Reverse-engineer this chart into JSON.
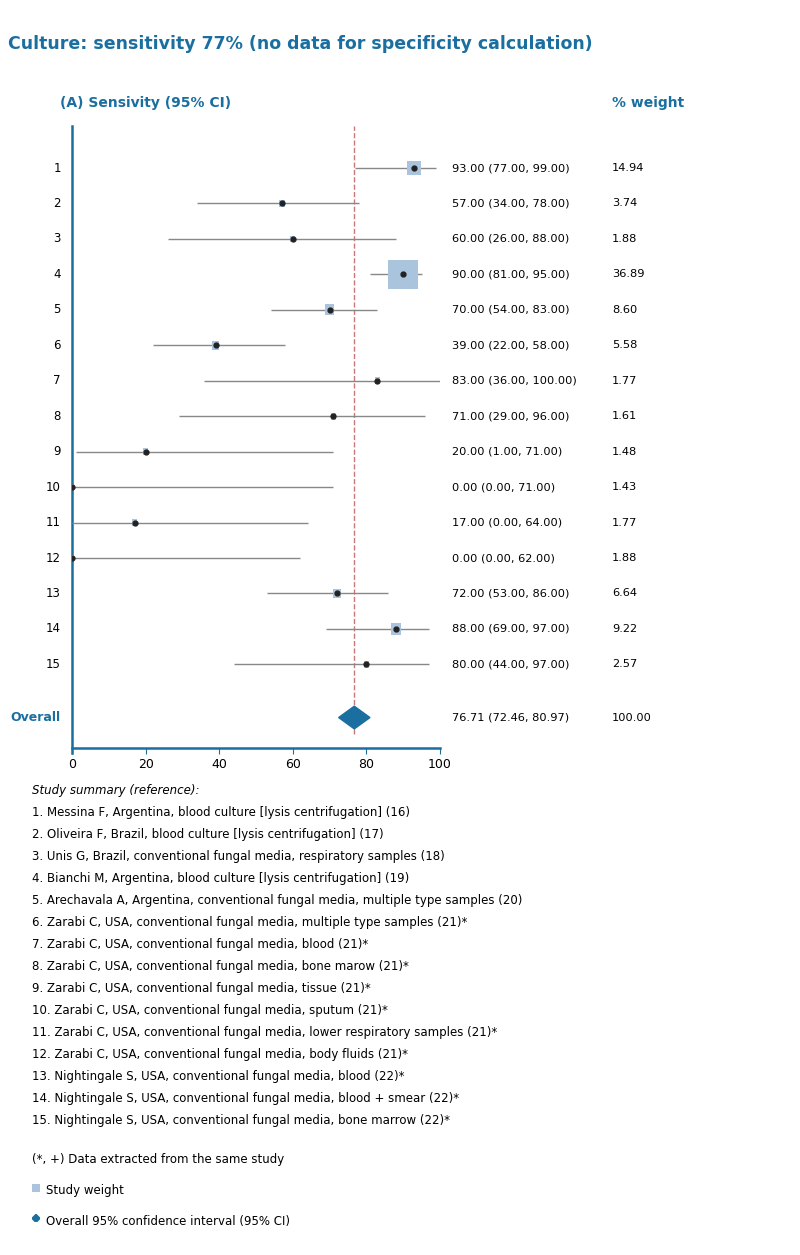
{
  "title": "Culture: sensitivity 77% (no data for specificity calculation)",
  "title_color": "#1a6fa0",
  "header_left": "(A) Sensivity (95% CI)",
  "header_right": "% weight",
  "header_color": "#1a6fa0",
  "estimates": [
    93,
    57,
    60,
    90,
    70,
    39,
    83,
    71,
    20,
    0,
    17,
    0,
    72,
    88,
    80
  ],
  "ci_lower": [
    77,
    34,
    26,
    81,
    54,
    22,
    36,
    29,
    1,
    0,
    0,
    0,
    53,
    69,
    44
  ],
  "ci_upper": [
    99,
    78,
    88,
    95,
    83,
    58,
    100,
    96,
    71,
    71,
    64,
    62,
    86,
    97,
    97
  ],
  "weights": [
    14.94,
    3.74,
    1.88,
    36.89,
    8.6,
    5.58,
    1.77,
    1.61,
    1.48,
    1.43,
    1.77,
    1.88,
    6.64,
    9.22,
    2.57
  ],
  "ci_texts": [
    "93.00 (77.00, 99.00)",
    "57.00 (34.00, 78.00)",
    "60.00 (26.00, 88.00)",
    "90.00 (81.00, 95.00)",
    "70.00 (54.00, 83.00)",
    "39.00 (22.00, 58.00)",
    "83.00 (36.00, 100.00)",
    "71.00 (29.00, 96.00)",
    "20.00 (1.00, 71.00)",
    "0.00 (0.00, 71.00)",
    "17.00 (0.00, 64.00)",
    "0.00 (0.00, 62.00)",
    "72.00 (53.00, 86.00)",
    "88.00 (69.00, 97.00)",
    "80.00 (44.00, 97.00)"
  ],
  "weight_texts": [
    "14.94",
    "3.74",
    "1.88",
    "36.89",
    "8.60",
    "5.58",
    "1.77",
    "1.61",
    "1.48",
    "1.43",
    "1.77",
    "1.88",
    "6.64",
    "9.22",
    "2.57"
  ],
  "overall_estimate": 76.71,
  "overall_ci_lower": 72.46,
  "overall_ci_upper": 80.97,
  "overall_text": "76.71 (72.46, 80.97)",
  "overall_weight_text": "100.00",
  "xmin": 0,
  "xmax": 100,
  "xticks": [
    0,
    20,
    40,
    60,
    80,
    100
  ],
  "axis_color": "#1a6fa0",
  "ci_line_color": "#888888",
  "dot_color": "#222222",
  "square_color": "#aac4de",
  "overall_diamond_color": "#1a6fa0",
  "dashed_line_color": "#cc7777",
  "legend_text": [
    "(*, +) Data extracted from the same study",
    "Study weight",
    "Overall 95% confidence interval (95% CI)"
  ],
  "study_summary_title": "Study summary (reference):",
  "study_refs": [
    "1. Messina F, Argentina, blood culture [lysis centrifugation] (16)",
    "2. Oliveira F, Brazil, blood culture [lysis centrifugation] (17)",
    "3. Unis G, Brazil, conventional fungal media, respiratory samples (18)",
    "4. Bianchi M, Argentina, blood culture [lysis centrifugation] (19)",
    "5. Arechavala A, Argentina, conventional fungal media, multiple type samples (20)",
    "6. Zarabi C, USA, conventional fungal media, multiple type samples (21)*",
    "7. Zarabi C, USA, conventional fungal media, blood (21)*",
    "8. Zarabi C, USA, conventional fungal media, bone marow (21)*",
    "9. Zarabi C, USA, conventional fungal media, tissue (21)*",
    "10. Zarabi C, USA, conventional fungal media, sputum (21)*",
    "11. Zarabi C, USA, conventional fungal media, lower respiratory samples (21)*",
    "12. Zarabi C, USA, conventional fungal media, body fluids (21)*",
    "13. Nightingale S, USA, conventional fungal media, blood (22)*",
    "14. Nightingale S, USA, conventional fungal media, blood + smear (22)*",
    "15. Nightingale S, USA, conventional fungal media, bone marrow (22)*"
  ]
}
